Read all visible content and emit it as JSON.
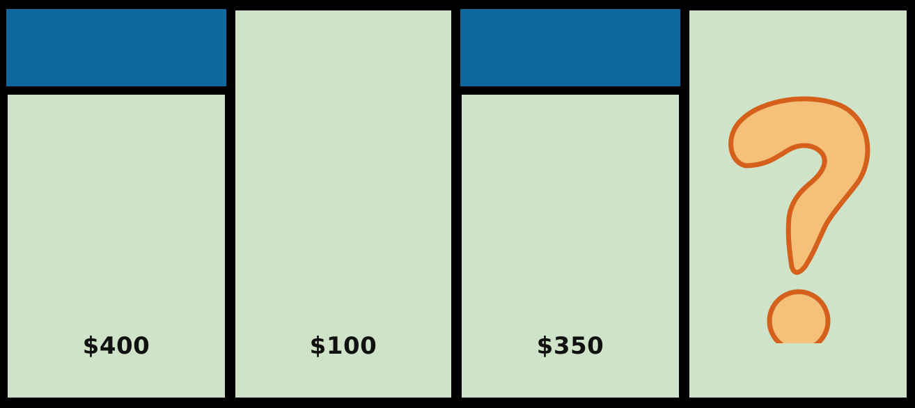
{
  "cards": [
    {
      "price": "$400",
      "has_band": true
    },
    {
      "price": "$100",
      "has_band": false
    },
    {
      "price": "$350",
      "has_band": true
    },
    {
      "price": "",
      "has_band": false,
      "icon": "question-mark-icon"
    }
  ],
  "colors": {
    "background": "#000000",
    "band": "#0f67a0",
    "card": "#cfe3c8",
    "text": "#111111",
    "question_fill": "#f5c07a",
    "question_stroke": "#d4601c"
  }
}
